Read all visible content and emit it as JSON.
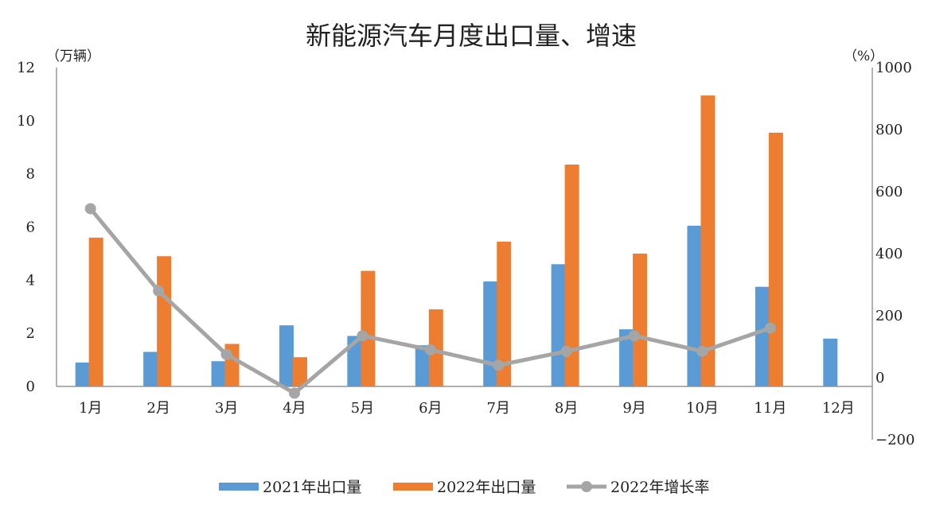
{
  "chart_data": {
    "type": "bar",
    "title": "新能源汽车月度出口量、增速",
    "y_left_unit": "（万辆）",
    "y_right_unit": "（%）",
    "categories": [
      "1月",
      "2月",
      "3月",
      "4月",
      "5月",
      "6月",
      "7月",
      "8月",
      "9月",
      "10月",
      "11月",
      "12月"
    ],
    "ylim_left": [
      0,
      12
    ],
    "yticks_left": [
      "0",
      "2",
      "4",
      "6",
      "8",
      "10",
      "12"
    ],
    "ylim_right": [
      -200,
      1000
    ],
    "yticks_right": [
      "−200",
      "0",
      "200",
      "400",
      "600",
      "800",
      "1000"
    ],
    "series": [
      {
        "name": "2021年出口量",
        "type": "bar",
        "axis": "left",
        "color": "#5b9bd5",
        "values": [
          0.9,
          1.3,
          0.95,
          2.3,
          1.9,
          1.55,
          3.95,
          4.6,
          2.15,
          6.05,
          3.75,
          1.8
        ]
      },
      {
        "name": "2022年出口量",
        "type": "bar",
        "axis": "left",
        "color": "#ed7d31",
        "values": [
          5.6,
          4.9,
          1.6,
          1.1,
          4.35,
          2.9,
          5.45,
          8.35,
          5.0,
          10.95,
          9.55,
          null
        ]
      },
      {
        "name": "2022年增长率",
        "type": "line",
        "axis": "right",
        "color": "#a5a5a5",
        "values": [
          545,
          280,
          75,
          -50,
          135,
          90,
          40,
          85,
          135,
          85,
          160,
          null
        ]
      }
    ],
    "negative_tick_color": "#ff0000",
    "legend_position": "bottom"
  }
}
